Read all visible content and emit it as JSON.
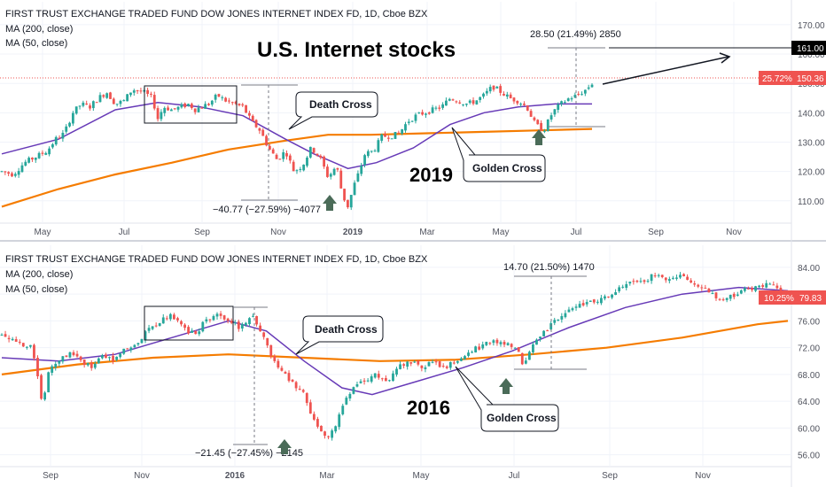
{
  "colors": {
    "up": "#26a69a",
    "down": "#ef5350",
    "ma200": "#f57c00",
    "ma50": "#673ab7",
    "price_badge": "#ef5350",
    "arrow_marker": "#4a6b58",
    "target_badge": "#000000"
  },
  "chart_data": [
    {
      "type": "candlestick",
      "title": "FIRST TRUST EXCHANGE TRADED FUND DOW JONES INTERNET INDEX FD, 1D, Cboe BZX",
      "legend": [
        "MA (200, close)",
        "MA (50, close)"
      ],
      "annotation_title": "U.S. Internet stocks",
      "year_label": "2019",
      "x_ticks": [
        "May",
        "Jul",
        "Sep",
        "Nov",
        "2019",
        "Mar",
        "May",
        "Jul",
        "Sep",
        "Nov"
      ],
      "y_ticks": [
        110.0,
        120.0,
        130.0,
        140.0,
        150.0,
        160.0,
        170.0
      ],
      "ylim": [
        103,
        176
      ],
      "last_price": "150.36",
      "last_change": "25.72%",
      "target_price": "161.00",
      "death_cross_label": "Death Cross",
      "golden_cross_label": "Golden Cross",
      "measure_down": "−40.77 (−27.59%) −4077",
      "measure_up": "28.50 (21.49%) 2850",
      "price_path": [
        [
          0,
          120
        ],
        [
          4,
          119
        ],
        [
          8,
          123
        ],
        [
          12,
          125
        ],
        [
          16,
          127
        ],
        [
          19,
          131
        ],
        [
          22,
          133
        ],
        [
          25,
          140
        ],
        [
          28,
          143
        ],
        [
          31,
          142
        ],
        [
          34,
          145
        ],
        [
          37,
          147
        ],
        [
          40,
          143
        ],
        [
          43,
          144
        ],
        [
          46,
          148
        ],
        [
          50,
          147
        ],
        [
          53,
          145
        ],
        [
          55,
          138
        ],
        [
          57,
          142
        ],
        [
          60,
          141
        ],
        [
          63,
          142
        ],
        [
          66,
          143
        ],
        [
          68,
          141
        ],
        [
          70,
          142
        ],
        [
          73,
          143
        ],
        [
          76,
          146
        ],
        [
          79,
          144
        ],
        [
          82,
          143
        ],
        [
          85,
          142
        ],
        [
          88,
          137
        ],
        [
          91,
          134
        ],
        [
          94,
          128
        ],
        [
          97,
          124
        ],
        [
          100,
          127
        ],
        [
          103,
          120
        ],
        [
          106,
          122
        ],
        [
          109,
          128
        ],
        [
          112,
          125
        ],
        [
          115,
          118
        ],
        [
          118,
          122
        ],
        [
          120,
          112
        ],
        [
          122,
          108
        ],
        [
          124,
          115
        ],
        [
          126,
          120
        ],
        [
          128,
          126
        ],
        [
          131,
          127
        ],
        [
          134,
          132
        ],
        [
          137,
          132
        ],
        [
          140,
          133
        ],
        [
          143,
          137
        ],
        [
          146,
          139
        ],
        [
          149,
          140
        ],
        [
          152,
          141
        ],
        [
          155,
          142
        ],
        [
          158,
          145
        ],
        [
          161,
          144
        ],
        [
          164,
          143
        ],
        [
          167,
          144
        ],
        [
          170,
          146
        ],
        [
          173,
          149
        ],
        [
          176,
          147
        ],
        [
          179,
          145
        ],
        [
          182,
          144
        ],
        [
          185,
          142
        ],
        [
          188,
          136
        ],
        [
          191,
          134
        ],
        [
          194,
          140
        ],
        [
          197,
          143
        ],
        [
          200,
          145
        ],
        [
          203,
          146
        ],
        [
          206,
          148
        ],
        [
          208,
          150
        ]
      ],
      "ma200": [
        [
          0,
          108
        ],
        [
          20,
          114
        ],
        [
          40,
          119
        ],
        [
          60,
          123
        ],
        [
          80,
          127.5
        ],
        [
          100,
          130.5
        ],
        [
          115,
          132.5
        ],
        [
          130,
          132.5
        ],
        [
          150,
          133
        ],
        [
          170,
          133.5
        ],
        [
          190,
          134
        ],
        [
          208,
          134.5
        ]
      ],
      "ma50": [
        [
          0,
          126
        ],
        [
          20,
          131
        ],
        [
          40,
          141
        ],
        [
          55,
          143.5
        ],
        [
          70,
          142
        ],
        [
          85,
          139
        ],
        [
          100,
          131
        ],
        [
          110,
          126
        ],
        [
          122,
          121
        ],
        [
          132,
          123
        ],
        [
          145,
          128
        ],
        [
          158,
          136
        ],
        [
          170,
          140
        ],
        [
          182,
          142
        ],
        [
          195,
          143
        ],
        [
          208,
          143
        ]
      ]
    },
    {
      "type": "candlestick",
      "title": "FIRST TRUST EXCHANGE TRADED FUND DOW JONES INTERNET INDEX FD, 1D, Cboe BZX",
      "legend": [
        "MA (200, close)",
        "MA (50, close)"
      ],
      "year_label": "2016",
      "x_ticks": [
        "Sep",
        "Nov",
        "2016",
        "Mar",
        "May",
        "Jul",
        "Sep",
        "Nov"
      ],
      "y_ticks": [
        56.0,
        60.0,
        64.0,
        68.0,
        72.0,
        76.0,
        80.0,
        84.0
      ],
      "ylim": [
        54.5,
        86.5
      ],
      "last_price": "79.83",
      "last_change": "10.25%",
      "death_cross_label": "Death Cross",
      "golden_cross_label": "Golden Cross",
      "measure_down": "−21.45 (−27.45%) −2145",
      "measure_up": "14.70 (21.50%) 1470",
      "price_path": [
        [
          0,
          74
        ],
        [
          4,
          73
        ],
        [
          8,
          72
        ],
        [
          10,
          66
        ],
        [
          11,
          63
        ],
        [
          12,
          68
        ],
        [
          15,
          70
        ],
        [
          18,
          71
        ],
        [
          21,
          70
        ],
        [
          24,
          69
        ],
        [
          27,
          71
        ],
        [
          30,
          70
        ],
        [
          33,
          72
        ],
        [
          36,
          73
        ],
        [
          39,
          75
        ],
        [
          42,
          76
        ],
        [
          45,
          77
        ],
        [
          48,
          75
        ],
        [
          51,
          74
        ],
        [
          54,
          76
        ],
        [
          57,
          77
        ],
        [
          60,
          76
        ],
        [
          63,
          75
        ],
        [
          66,
          77
        ],
        [
          69,
          74
        ],
        [
          72,
          70
        ],
        [
          75,
          68
        ],
        [
          78,
          66
        ],
        [
          80,
          65
        ],
        [
          82,
          62
        ],
        [
          84,
          60
        ],
        [
          86,
          58
        ],
        [
          88,
          60
        ],
        [
          90,
          63
        ],
        [
          93,
          66
        ],
        [
          96,
          67
        ],
        [
          99,
          68
        ],
        [
          102,
          67
        ],
        [
          105,
          69
        ],
        [
          108,
          70
        ],
        [
          111,
          69
        ],
        [
          114,
          70
        ],
        [
          117,
          69
        ],
        [
          120,
          70
        ],
        [
          123,
          71
        ],
        [
          126,
          72
        ],
        [
          129,
          73
        ],
        [
          132,
          73
        ],
        [
          135,
          72
        ],
        [
          137,
          71
        ],
        [
          138,
          69
        ],
        [
          140,
          72
        ],
        [
          143,
          74
        ],
        [
          146,
          76
        ],
        [
          149,
          77
        ],
        [
          152,
          78
        ],
        [
          155,
          79
        ],
        [
          158,
          79
        ],
        [
          161,
          80
        ],
        [
          164,
          81
        ],
        [
          167,
          82
        ],
        [
          170,
          82
        ],
        [
          173,
          83
        ],
        [
          176,
          82
        ],
        [
          179,
          83
        ],
        [
          182,
          82
        ],
        [
          185,
          81
        ],
        [
          188,
          80
        ],
        [
          191,
          79
        ],
        [
          194,
          80
        ],
        [
          197,
          81
        ],
        [
          200,
          81
        ],
        [
          203,
          82
        ],
        [
          206,
          81
        ],
        [
          208,
          80
        ]
      ],
      "ma200": [
        [
          0,
          68
        ],
        [
          20,
          69.5
        ],
        [
          40,
          70.5
        ],
        [
          60,
          71
        ],
        [
          80,
          70.5
        ],
        [
          100,
          70
        ],
        [
          120,
          70.2
        ],
        [
          140,
          71
        ],
        [
          160,
          72
        ],
        [
          180,
          73.5
        ],
        [
          200,
          75.5
        ],
        [
          208,
          76
        ]
      ],
      "ma50": [
        [
          0,
          70.5
        ],
        [
          15,
          70
        ],
        [
          30,
          71
        ],
        [
          45,
          73.5
        ],
        [
          60,
          76
        ],
        [
          70,
          74.5
        ],
        [
          80,
          70
        ],
        [
          90,
          66
        ],
        [
          98,
          65
        ],
        [
          110,
          67
        ],
        [
          122,
          69
        ],
        [
          135,
          71.5
        ],
        [
          150,
          75
        ],
        [
          165,
          78
        ],
        [
          180,
          80
        ],
        [
          195,
          81
        ],
        [
          208,
          80.5
        ]
      ]
    }
  ]
}
